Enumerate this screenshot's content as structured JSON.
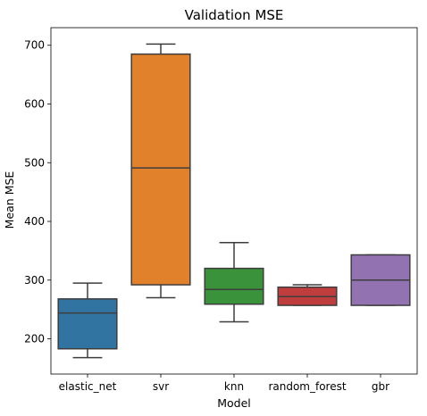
{
  "chart_data": {
    "type": "box",
    "title": "Validation MSE",
    "xlabel": "Model",
    "ylabel": "Mean MSE",
    "ylim": [
      140,
      730
    ],
    "yticks": [
      200,
      300,
      400,
      500,
      600,
      700
    ],
    "grid": false,
    "categories": [
      "elastic_net",
      "svr",
      "knn",
      "random_forest",
      "gbr"
    ],
    "boxes": [
      {
        "name": "elastic_net",
        "whisker_low": 168,
        "q1": 183,
        "median": 244,
        "q3": 268,
        "whisker_high": 295,
        "color": "#3274a1"
      },
      {
        "name": "svr",
        "whisker_low": 270,
        "q1": 292,
        "median": 491,
        "q3": 685,
        "whisker_high": 702,
        "color": "#e1812c"
      },
      {
        "name": "knn",
        "whisker_low": 229,
        "q1": 259,
        "median": 284,
        "q3": 320,
        "whisker_high": 364,
        "color": "#3a923a"
      },
      {
        "name": "random_forest",
        "whisker_low": 257,
        "q1": 257,
        "median": 272,
        "q3": 288,
        "whisker_high": 292,
        "color": "#c03d3e"
      },
      {
        "name": "gbr",
        "whisker_low": 257,
        "q1": 257,
        "median": 300,
        "q3": 343,
        "whisker_high": 343,
        "color": "#9372b2"
      }
    ]
  }
}
